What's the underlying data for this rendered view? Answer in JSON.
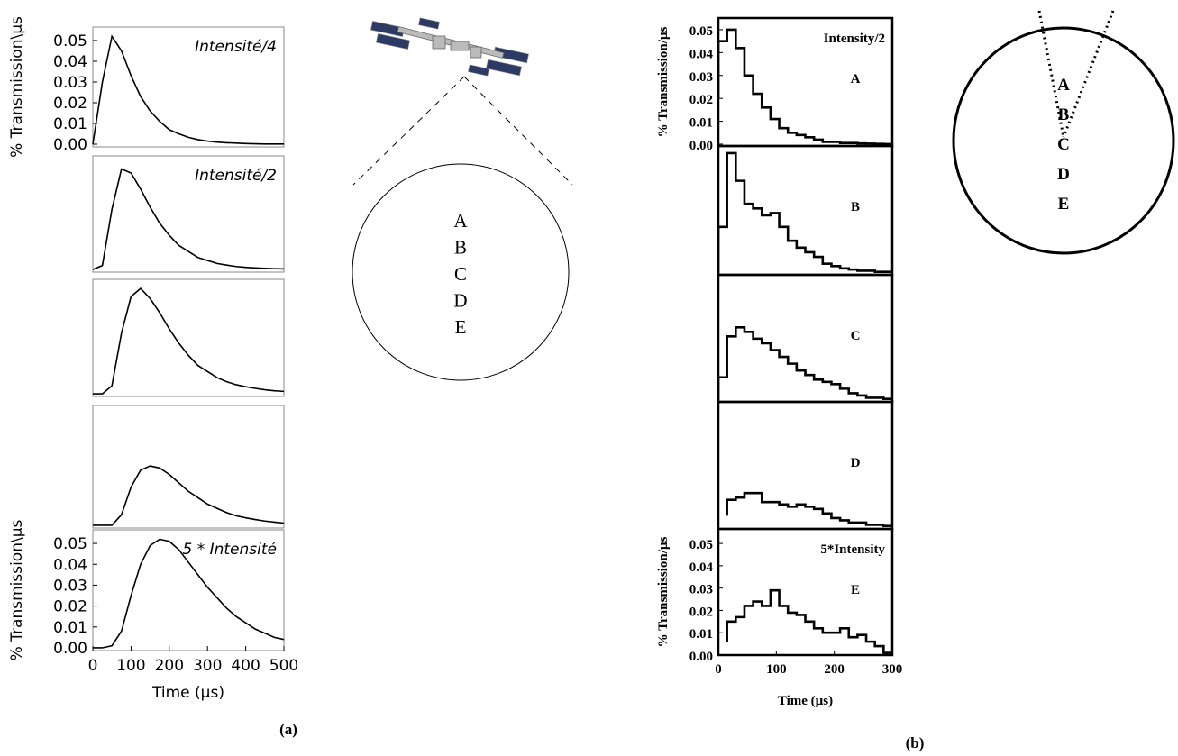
{
  "chart_data": [
    {
      "type": "line",
      "color": "#000000",
      "x": [
        0,
        25,
        50,
        75,
        100,
        125,
        150,
        175,
        200,
        225,
        250,
        275,
        300,
        325,
        350,
        375,
        400,
        425,
        450,
        475,
        500
      ],
      "values": [
        0,
        0.03,
        0.052,
        0.045,
        0.033,
        0.023,
        0.016,
        0.011,
        0.007,
        0.005,
        0.0033,
        0.0022,
        0.0015,
        0.001,
        0.0007,
        0.0005,
        0.0003,
        0.0002,
        0.0001,
        0.0001,
        0.0001
      ],
      "xlim": [
        0,
        500
      ],
      "ylim": [
        -0.0013,
        0.0565
      ],
      "yticks": [
        {
          "value": 0,
          "label": "0.00"
        },
        {
          "value": 0.01,
          "label": "0.01"
        },
        {
          "value": 0.02,
          "label": "0.02"
        },
        {
          "value": 0.03,
          "label": "0.03"
        },
        {
          "value": 0.04,
          "label": "0.04"
        },
        {
          "value": 0.05,
          "label": "0.05"
        }
      ],
      "ylabel": "% Transmission\\µs",
      "annotation": "Intensité/4"
    },
    {
      "type": "line",
      "color": "#000000",
      "x": [
        0,
        25,
        50,
        75,
        100,
        125,
        150,
        175,
        200,
        225,
        250,
        275,
        300,
        325,
        350,
        375,
        400,
        425,
        450,
        475,
        500
      ],
      "values": [
        0,
        0.002,
        0.03,
        0.05,
        0.048,
        0.04,
        0.031,
        0.023,
        0.017,
        0.012,
        0.009,
        0.006,
        0.0045,
        0.003,
        0.0022,
        0.0015,
        0.0011,
        0.0008,
        0.0006,
        0.0004,
        0.0003
      ],
      "xlim": [
        0,
        500
      ],
      "ylim": [
        -0.0013,
        0.0565
      ],
      "annotation": "Intensité/2"
    },
    {
      "type": "line",
      "color": "#000000",
      "x": [
        0,
        25,
        50,
        75,
        100,
        125,
        150,
        175,
        200,
        225,
        250,
        275,
        300,
        325,
        350,
        375,
        400,
        425,
        450,
        475,
        500
      ],
      "values": [
        0,
        0,
        0.004,
        0.03,
        0.048,
        0.052,
        0.047,
        0.04,
        0.032,
        0.025,
        0.019,
        0.014,
        0.011,
        0.008,
        0.006,
        0.0045,
        0.0035,
        0.0027,
        0.002,
        0.0015,
        0.0012
      ],
      "xlim": [
        0,
        500
      ],
      "ylim": [
        -0.0013,
        0.0565
      ]
    },
    {
      "type": "line",
      "color": "#000000",
      "x": [
        0,
        25,
        50,
        75,
        100,
        125,
        150,
        175,
        200,
        225,
        250,
        275,
        300,
        325,
        350,
        375,
        400,
        425,
        450,
        475,
        500
      ],
      "values": [
        0,
        0,
        0,
        0.005,
        0.018,
        0.026,
        0.028,
        0.027,
        0.024,
        0.02,
        0.016,
        0.013,
        0.01,
        0.008,
        0.006,
        0.0045,
        0.0035,
        0.0027,
        0.002,
        0.0015,
        0.001
      ],
      "xlim": [
        0,
        500
      ],
      "ylim": [
        -0.0013,
        0.0565
      ]
    },
    {
      "type": "line",
      "color": "#000000",
      "x": [
        0,
        25,
        50,
        75,
        100,
        125,
        150,
        175,
        200,
        225,
        250,
        275,
        300,
        325,
        350,
        375,
        400,
        425,
        450,
        475,
        500
      ],
      "values": [
        0,
        0,
        0.001,
        0.008,
        0.025,
        0.04,
        0.049,
        0.052,
        0.051,
        0.047,
        0.041,
        0.035,
        0.029,
        0.024,
        0.019,
        0.015,
        0.012,
        0.009,
        0.007,
        0.005,
        0.004
      ],
      "xlim": [
        0,
        500
      ],
      "ylim": [
        -0.0013,
        0.0565
      ],
      "yticks": [
        {
          "value": 0,
          "label": "0.00"
        },
        {
          "value": 0.01,
          "label": "0.01"
        },
        {
          "value": 0.02,
          "label": "0.02"
        },
        {
          "value": 0.03,
          "label": "0.03"
        },
        {
          "value": 0.04,
          "label": "0.04"
        },
        {
          "value": 0.05,
          "label": "0.05"
        }
      ],
      "xticks": [
        0,
        100,
        200,
        300,
        400,
        500
      ],
      "ylabel": "% Transmission\\µs",
      "xlabel": "Time (µs)",
      "annotation": "5 * Intensité"
    },
    {
      "type": "step",
      "color": "#000000",
      "x": [
        0,
        15,
        30,
        45,
        60,
        75,
        90,
        105,
        120,
        135,
        150,
        165,
        180,
        195,
        210,
        225,
        240,
        255,
        270,
        285,
        300
      ],
      "values": [
        0.02,
        0.045,
        0.05,
        0.042,
        0.03,
        0.022,
        0.016,
        0.011,
        0.007,
        0.005,
        0.004,
        0.003,
        0.002,
        0.001,
        0.001,
        0.0005,
        0.0005,
        0.0003,
        0.0002,
        0.0001,
        0
      ],
      "xlim": [
        0,
        300
      ],
      "ylim": [
        -0.0008,
        0.0551
      ],
      "yticks": [
        {
          "value": 0,
          "label": "0.00"
        },
        {
          "value": 0.01,
          "label": "0.01"
        },
        {
          "value": 0.02,
          "label": "0.02"
        },
        {
          "value": 0.03,
          "label": "0.03"
        },
        {
          "value": 0.04,
          "label": "0.04"
        },
        {
          "value": 0.05,
          "label": "0.05"
        }
      ],
      "ylabel": "% Transmission/µs",
      "annotation": "Intensity/2",
      "letter": "A"
    },
    {
      "type": "step",
      "color": "#000000",
      "x": [
        0,
        15,
        30,
        45,
        60,
        75,
        90,
        105,
        120,
        135,
        150,
        165,
        180,
        195,
        210,
        225,
        240,
        255,
        270,
        285,
        300
      ],
      "values": [
        0,
        0.02,
        0.052,
        0.04,
        0.03,
        0.028,
        0.025,
        0.026,
        0.02,
        0.014,
        0.011,
        0.009,
        0.007,
        0.004,
        0.003,
        0.002,
        0.0015,
        0.001,
        0.001,
        0.0005,
        0.0005
      ],
      "xlim": [
        0,
        300
      ],
      "ylim": [
        -0.0008,
        0.0551
      ],
      "letter": "B"
    },
    {
      "type": "step",
      "color": "#000000",
      "x": [
        0,
        15,
        30,
        45,
        60,
        75,
        90,
        105,
        120,
        135,
        150,
        165,
        180,
        195,
        210,
        225,
        240,
        255,
        270,
        285,
        300
      ],
      "values": [
        0,
        0.01,
        0.028,
        0.032,
        0.03,
        0.027,
        0.025,
        0.022,
        0.019,
        0.016,
        0.013,
        0.011,
        0.009,
        0.008,
        0.007,
        0.005,
        0.003,
        0.002,
        0.001,
        0.001,
        0.0005
      ],
      "xlim": [
        0,
        300
      ],
      "ylim": [
        -0.0008,
        0.0551
      ],
      "letter": "C"
    },
    {
      "type": "step",
      "color": "#000000",
      "x": [
        0,
        15,
        30,
        45,
        60,
        75,
        90,
        105,
        120,
        135,
        150,
        165,
        180,
        195,
        210,
        225,
        240,
        255,
        270,
        285,
        300
      ],
      "values": [
        null,
        0.005,
        0.012,
        0.013,
        0.015,
        0.015,
        0.011,
        0.011,
        0.01,
        0.009,
        0.01,
        0.009,
        0.008,
        0.006,
        0.004,
        0.003,
        0.002,
        0.002,
        0.001,
        0.001,
        0.0005
      ],
      "xlim": [
        0,
        300
      ],
      "ylim": [
        -0.0008,
        0.0551
      ],
      "letter": "D"
    },
    {
      "type": "step",
      "color": "#000000",
      "x": [
        0,
        15,
        30,
        45,
        60,
        75,
        90,
        105,
        120,
        135,
        150,
        165,
        180,
        195,
        210,
        225,
        240,
        255,
        270,
        285,
        300
      ],
      "values": [
        null,
        0.006,
        0.015,
        0.017,
        0.022,
        0.024,
        0.022,
        0.029,
        0.022,
        0.019,
        0.018,
        0.015,
        0.012,
        0.01,
        0.01,
        0.012,
        0.008,
        0.009,
        0.006,
        0.004,
        0.001
      ],
      "xlim": [
        0,
        300
      ],
      "ylim": [
        0,
        0.0565
      ],
      "yticks": [
        {
          "value": 0,
          "label": "0.00"
        },
        {
          "value": 0.01,
          "label": "0.01"
        },
        {
          "value": 0.02,
          "label": "0.02"
        },
        {
          "value": 0.03,
          "label": "0.03"
        },
        {
          "value": 0.04,
          "label": "0.04"
        },
        {
          "value": 0.05,
          "label": "0.05"
        }
      ],
      "xticks": [
        0,
        100,
        200,
        300
      ],
      "ylabel": "% Transmission/µs",
      "xlabel": "Time (µs)",
      "annotation": "5*Intensity",
      "letter": "E"
    }
  ],
  "diagram_a": {
    "labels": [
      "A",
      "B",
      "C",
      "D",
      "E"
    ]
  },
  "diagram_b": {
    "labels": [
      "A",
      "B",
      "C",
      "D",
      "E"
    ]
  },
  "panel_labels": [
    "(a)",
    "(b)"
  ]
}
